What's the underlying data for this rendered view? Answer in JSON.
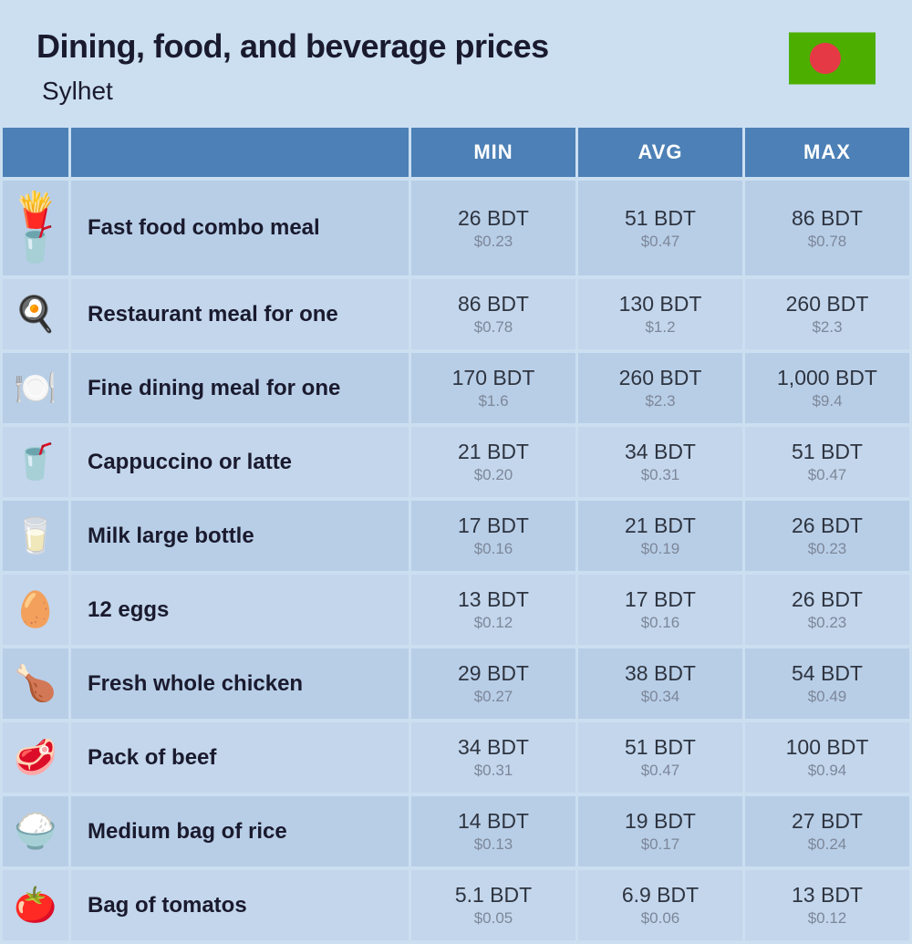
{
  "header": {
    "title": "Dining, food, and beverage prices",
    "subtitle": "Sylhet",
    "flag": {
      "bg_color": "#4caf00",
      "circle_color": "#e63946",
      "circle_cx_ratio": 0.42
    }
  },
  "table": {
    "columns": [
      "MIN",
      "AVG",
      "MAX"
    ],
    "row_colors": {
      "odd": "#b8cee7",
      "even": "#c3d6ec"
    },
    "header_bg": "#4c80b6",
    "header_text": "#ffffff",
    "primary_text_color": "#2e3440",
    "secondary_text_color": "#7d8799",
    "label_text_color": "#1a1a2e",
    "rows": [
      {
        "icon": "🍟🥤",
        "label": "Fast food combo meal",
        "min": {
          "primary": "26 BDT",
          "secondary": "$0.23"
        },
        "avg": {
          "primary": "51 BDT",
          "secondary": "$0.47"
        },
        "max": {
          "primary": "86 BDT",
          "secondary": "$0.78"
        }
      },
      {
        "icon": "🍳",
        "label": "Restaurant meal for one",
        "min": {
          "primary": "86 BDT",
          "secondary": "$0.78"
        },
        "avg": {
          "primary": "130 BDT",
          "secondary": "$1.2"
        },
        "max": {
          "primary": "260 BDT",
          "secondary": "$2.3"
        }
      },
      {
        "icon": "🍽️",
        "label": "Fine dining meal for one",
        "min": {
          "primary": "170 BDT",
          "secondary": "$1.6"
        },
        "avg": {
          "primary": "260 BDT",
          "secondary": "$2.3"
        },
        "max": {
          "primary": "1,000 BDT",
          "secondary": "$9.4"
        }
      },
      {
        "icon": "🥤",
        "label": "Cappuccino or latte",
        "min": {
          "primary": "21 BDT",
          "secondary": "$0.20"
        },
        "avg": {
          "primary": "34 BDT",
          "secondary": "$0.31"
        },
        "max": {
          "primary": "51 BDT",
          "secondary": "$0.47"
        }
      },
      {
        "icon": "🥛",
        "label": "Milk large bottle",
        "min": {
          "primary": "17 BDT",
          "secondary": "$0.16"
        },
        "avg": {
          "primary": "21 BDT",
          "secondary": "$0.19"
        },
        "max": {
          "primary": "26 BDT",
          "secondary": "$0.23"
        }
      },
      {
        "icon": "🥚",
        "label": "12 eggs",
        "min": {
          "primary": "13 BDT",
          "secondary": "$0.12"
        },
        "avg": {
          "primary": "17 BDT",
          "secondary": "$0.16"
        },
        "max": {
          "primary": "26 BDT",
          "secondary": "$0.23"
        }
      },
      {
        "icon": "🍗",
        "label": "Fresh whole chicken",
        "min": {
          "primary": "29 BDT",
          "secondary": "$0.27"
        },
        "avg": {
          "primary": "38 BDT",
          "secondary": "$0.34"
        },
        "max": {
          "primary": "54 BDT",
          "secondary": "$0.49"
        }
      },
      {
        "icon": "🥩",
        "label": "Pack of beef",
        "min": {
          "primary": "34 BDT",
          "secondary": "$0.31"
        },
        "avg": {
          "primary": "51 BDT",
          "secondary": "$0.47"
        },
        "max": {
          "primary": "100 BDT",
          "secondary": "$0.94"
        }
      },
      {
        "icon": "🍚",
        "label": "Medium bag of rice",
        "min": {
          "primary": "14 BDT",
          "secondary": "$0.13"
        },
        "avg": {
          "primary": "19 BDT",
          "secondary": "$0.17"
        },
        "max": {
          "primary": "27 BDT",
          "secondary": "$0.24"
        }
      },
      {
        "icon": "🍅",
        "label": "Bag of tomatos",
        "min": {
          "primary": "5.1 BDT",
          "secondary": "$0.05"
        },
        "avg": {
          "primary": "6.9 BDT",
          "secondary": "$0.06"
        },
        "max": {
          "primary": "13 BDT",
          "secondary": "$0.12"
        }
      }
    ]
  }
}
